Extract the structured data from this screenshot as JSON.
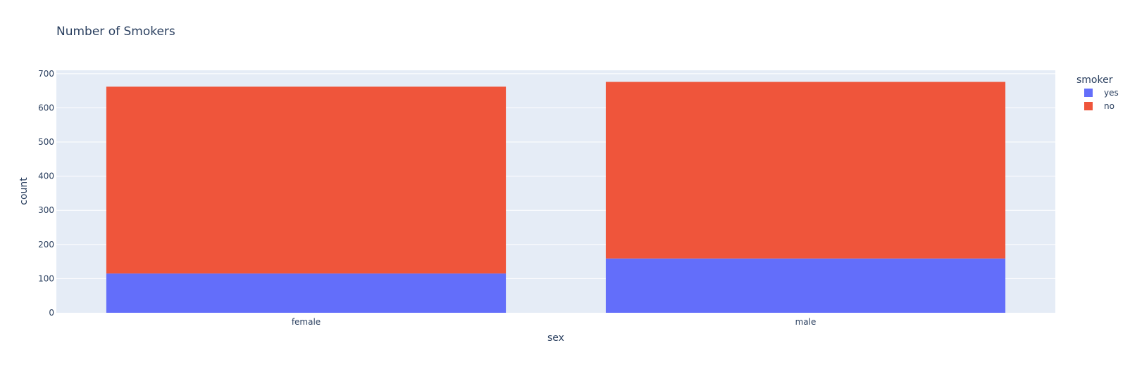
{
  "chart_data": {
    "type": "bar",
    "barmode": "stack",
    "title": "Number of Smokers",
    "xlabel": "sex",
    "ylabel": "count",
    "categories": [
      "female",
      "male"
    ],
    "ylim": [
      0,
      710
    ],
    "yticks": [
      0,
      100,
      200,
      300,
      400,
      500,
      600,
      700
    ],
    "grid": true,
    "legend": {
      "title": "smoker",
      "placement": "top-right"
    },
    "series": [
      {
        "name": "yes",
        "values": [
          115,
          159
        ],
        "color": "#636efa"
      },
      {
        "name": "no",
        "values": [
          547,
          517
        ],
        "color": "#ef553b"
      }
    ]
  },
  "colors": {
    "plot_background": "#e5ecf6",
    "grid": "#ffffff",
    "text": "#2a3f5f"
  }
}
